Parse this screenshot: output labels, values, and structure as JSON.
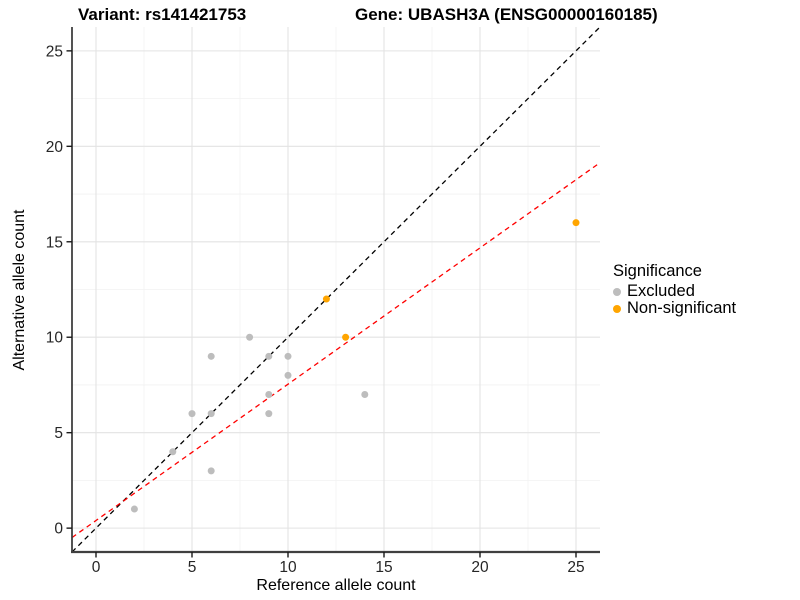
{
  "chart_data": {
    "type": "scatter",
    "title_left": "Variant: rs141421753",
    "title_right": "Gene: UBASH3A (ENSG00000160185)",
    "xlabel": "Reference allele count",
    "ylabel": "Alternative allele count",
    "x_ticks": [
      0,
      5,
      10,
      15,
      20,
      25
    ],
    "y_ticks": [
      0,
      5,
      10,
      15,
      20,
      25
    ],
    "minor_ticks": [
      2.5,
      7.5,
      12.5,
      17.5,
      22.5
    ],
    "axis_range": [
      -1.25,
      26.25
    ],
    "grid": true,
    "legend": {
      "title": "Significance",
      "position": "right",
      "items": [
        {
          "label": "Excluded",
          "color": "#BDBDBD"
        },
        {
          "label": "Non-significant",
          "color": "#FFA500"
        }
      ]
    },
    "series": [
      {
        "name": "Excluded",
        "color": "#BDBDBD",
        "points": [
          [
            2,
            1
          ],
          [
            4,
            4
          ],
          [
            5,
            6
          ],
          [
            6,
            3
          ],
          [
            6,
            6
          ],
          [
            6,
            9
          ],
          [
            8,
            10
          ],
          [
            9,
            6
          ],
          [
            9,
            7
          ],
          [
            9,
            9
          ],
          [
            10,
            8
          ],
          [
            10,
            9
          ],
          [
            14,
            7
          ]
        ]
      },
      {
        "name": "Non-significant",
        "color": "#FFA500",
        "points": [
          [
            12,
            12
          ],
          [
            13,
            10
          ],
          [
            25,
            16
          ]
        ]
      }
    ],
    "lines": [
      {
        "name": "identity-line",
        "slope": 1,
        "intercept": 0,
        "color": "#000000",
        "dash": "5,4"
      },
      {
        "name": "fit-line",
        "slope": 0.714,
        "intercept": 0.4,
        "color": "#FF0000",
        "dash": "5,4"
      }
    ],
    "colors": {
      "grid_major": "#E3E3E3",
      "grid_minor": "#F2F2F2",
      "axis_line": "#404040",
      "tick_label": "#262626"
    }
  }
}
